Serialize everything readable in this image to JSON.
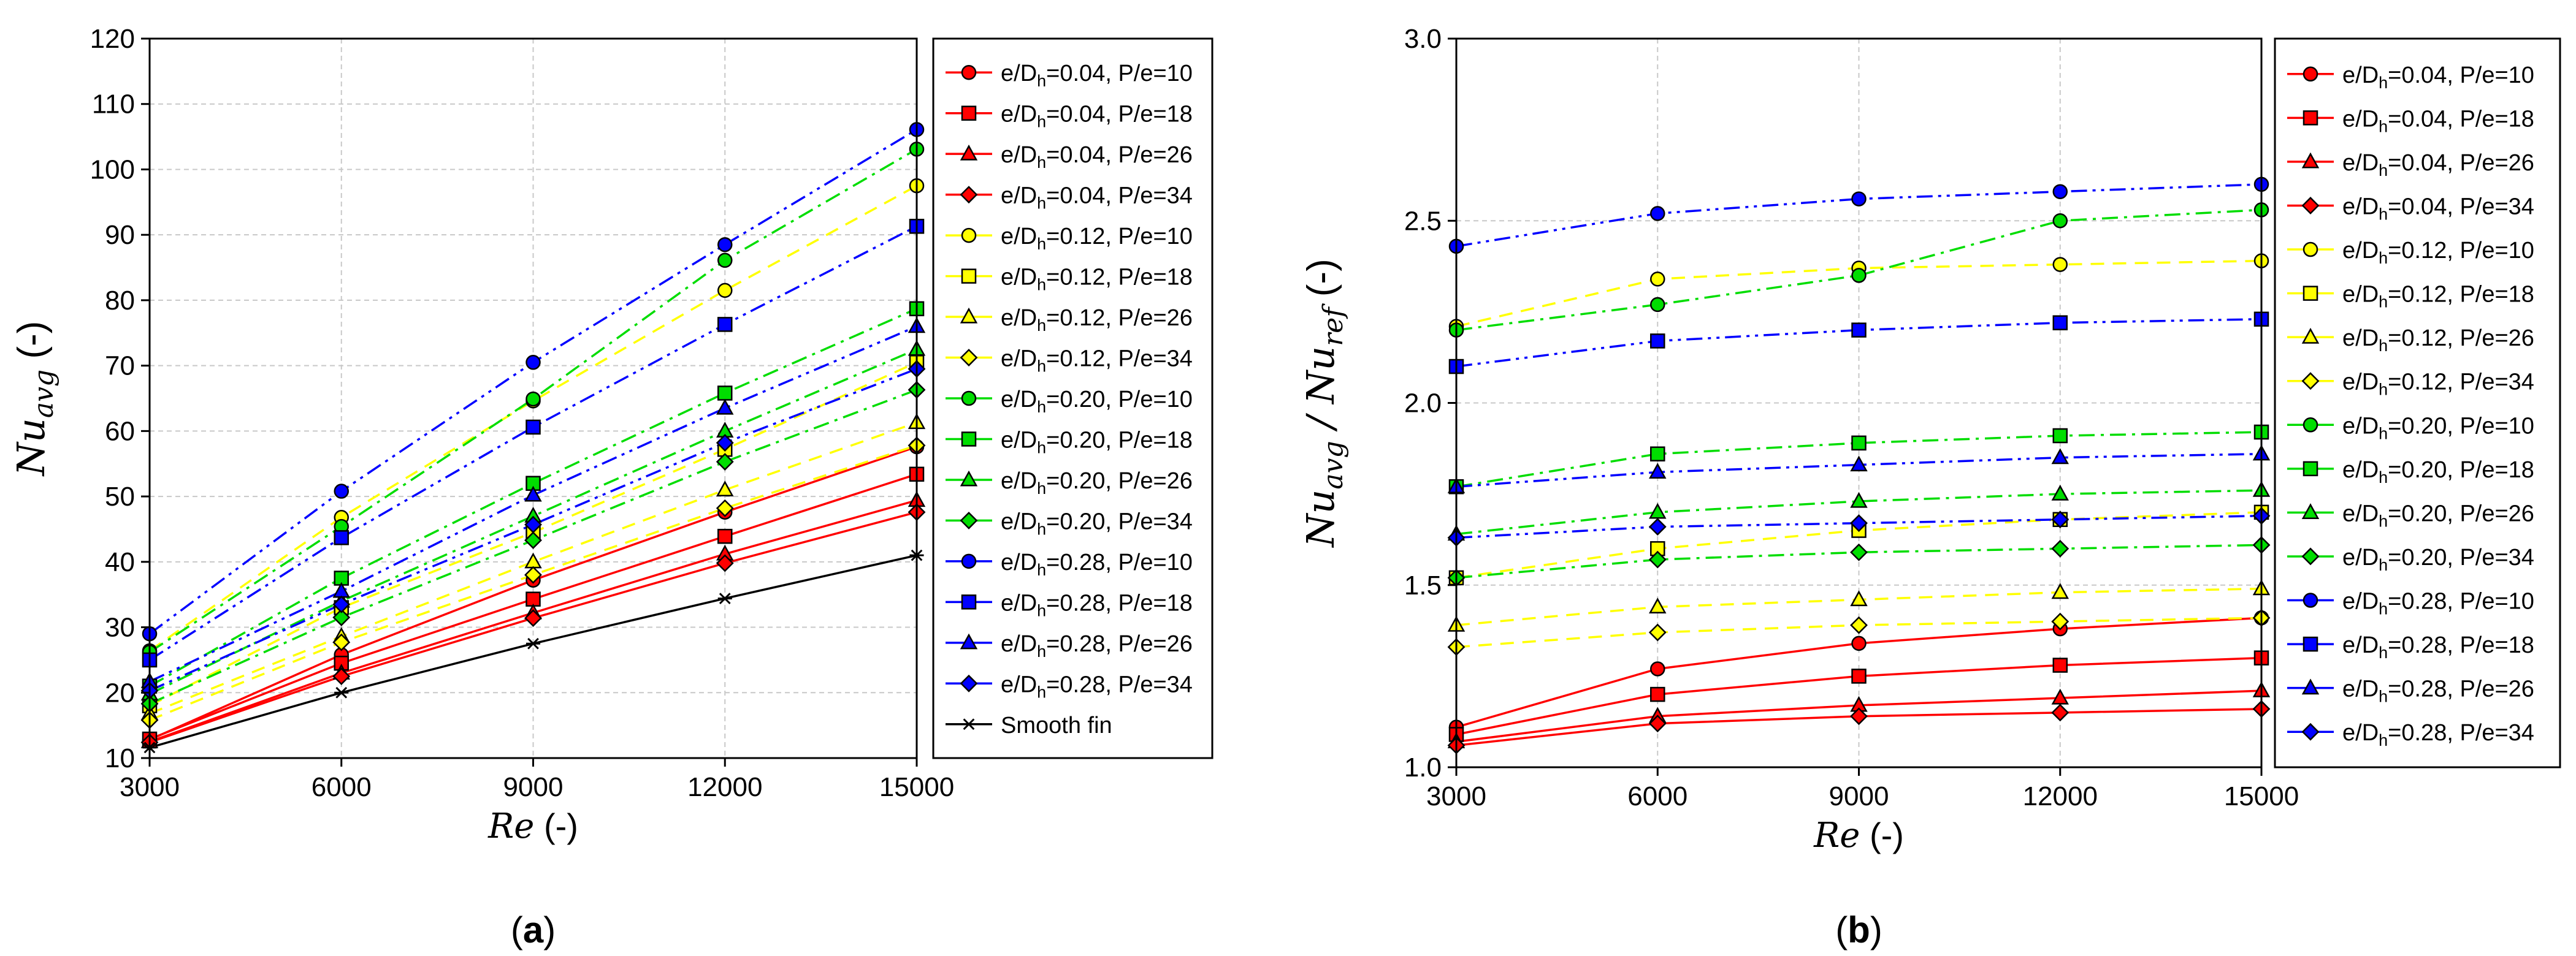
{
  "colors": {
    "red": "#ff0000",
    "yellow": "#ffff00",
    "green": "#00dd00",
    "blue": "#0000ff",
    "black": "#000000",
    "grid": "#c8c8c8"
  },
  "chart_data": [
    {
      "type": "line",
      "panel_label": "(a)",
      "ylabel_main": "Nu",
      "ylabel_sub": "avg",
      "ylabel_unit": "(-)",
      "xlabel_main": "Re",
      "xlabel_unit": "(-)",
      "x": [
        3000,
        6000,
        9000,
        12000,
        15000
      ],
      "x_tick_labels": [
        "3000",
        "6000",
        "9000",
        "12000",
        "15000"
      ],
      "xlim": [
        3000,
        15000
      ],
      "ylim": [
        10,
        120
      ],
      "y_ticks": [
        10,
        20,
        30,
        40,
        50,
        60,
        70,
        80,
        90,
        100,
        110,
        120
      ],
      "grid": true,
      "legend_position": "right-outside",
      "series": [
        {
          "name": "e/Dh=0.04, P/e=10",
          "label_pre": "e/D",
          "label_sub": "h",
          "label_post": "=0.04, P/e=10",
          "color": "red",
          "marker": "circle",
          "dash": "solid",
          "values": [
            12.8,
            25.8,
            37.2,
            47.6,
            57.6
          ]
        },
        {
          "name": "e/Dh=0.04, P/e=18",
          "label_pre": "e/D",
          "label_sub": "h",
          "label_post": "=0.04, P/e=18",
          "color": "red",
          "marker": "square",
          "dash": "solid",
          "values": [
            12.9,
            24.5,
            34.3,
            43.9,
            53.4
          ]
        },
        {
          "name": "e/Dh=0.04, P/e=26",
          "label_pre": "e/D",
          "label_sub": "h",
          "label_post": "=0.04, P/e=26",
          "color": "red",
          "marker": "triangle",
          "dash": "solid",
          "values": [
            12.5,
            23.0,
            32.2,
            41.2,
            49.4
          ]
        },
        {
          "name": "e/Dh=0.04, P/e=34",
          "label_pre": "e/D",
          "label_sub": "h",
          "label_post": "=0.04, P/e=34",
          "color": "red",
          "marker": "diamond",
          "dash": "solid",
          "values": [
            12.4,
            22.5,
            31.4,
            39.8,
            47.6
          ]
        },
        {
          "name": "e/Dh=0.12, P/e=10",
          "label_pre": "e/D",
          "label_sub": "h",
          "label_post": "=0.12, P/e=10",
          "color": "yellow",
          "marker": "circle",
          "dash": "dash",
          "values": [
            26.4,
            46.8,
            64.6,
            81.5,
            97.5
          ]
        },
        {
          "name": "e/Dh=0.12, P/e=18",
          "label_pre": "e/D",
          "label_sub": "h",
          "label_post": "=0.12, P/e=18",
          "color": "yellow",
          "marker": "square",
          "dash": "dash",
          "values": [
            18.0,
            33.0,
            44.5,
            57.2,
            70.5
          ]
        },
        {
          "name": "e/Dh=0.12, P/e=26",
          "label_pre": "e/D",
          "label_sub": "h",
          "label_post": "=0.12, P/e=26",
          "color": "yellow",
          "marker": "triangle",
          "dash": "dash",
          "values": [
            16.8,
            28.6,
            40.0,
            51.0,
            61.3
          ]
        },
        {
          "name": "e/Dh=0.12, P/e=34",
          "label_pre": "e/D",
          "label_sub": "h",
          "label_post": "=0.12, P/e=34",
          "color": "yellow",
          "marker": "diamond",
          "dash": "dash",
          "values": [
            15.8,
            27.7,
            38.0,
            48.2,
            57.8
          ]
        },
        {
          "name": "e/Dh=0.20, P/e=10",
          "label_pre": "e/D",
          "label_sub": "h",
          "label_post": "=0.20, P/e=10",
          "color": "green",
          "marker": "circle",
          "dash": "dashdot",
          "values": [
            26.2,
            45.4,
            64.9,
            86.1,
            103.1
          ]
        },
        {
          "name": "e/Dh=0.20, P/e=18",
          "label_pre": "e/D",
          "label_sub": "h",
          "label_post": "=0.20, P/e=18",
          "color": "green",
          "marker": "square",
          "dash": "dashdot",
          "values": [
            21.0,
            37.5,
            52.0,
            65.8,
            78.7
          ]
        },
        {
          "name": "e/Dh=0.20, P/e=26",
          "label_pre": "e/D",
          "label_sub": "h",
          "label_post": "=0.20, P/e=26",
          "color": "green",
          "marker": "triangle",
          "dash": "dashdot",
          "values": [
            19.8,
            34.0,
            47.0,
            60.0,
            72.5
          ]
        },
        {
          "name": "e/Dh=0.20, P/e=34",
          "label_pre": "e/D",
          "label_sub": "h",
          "label_post": "=0.20, P/e=34",
          "color": "green",
          "marker": "diamond",
          "dash": "dashdot",
          "values": [
            18.3,
            31.5,
            43.3,
            55.3,
            66.3
          ]
        },
        {
          "name": "e/Dh=0.28, P/e=10",
          "label_pre": "e/D",
          "label_sub": "h",
          "label_post": "=0.28, P/e=10",
          "color": "blue",
          "marker": "circle",
          "dash": "dashdotdot",
          "values": [
            29.0,
            50.8,
            70.5,
            88.5,
            106.1
          ]
        },
        {
          "name": "e/Dh=0.28, P/e=18",
          "label_pre": "e/D",
          "label_sub": "h",
          "label_post": "=0.28, P/e=18",
          "color": "blue",
          "marker": "square",
          "dash": "dashdotdot",
          "values": [
            25.0,
            43.7,
            60.6,
            76.3,
            91.3
          ]
        },
        {
          "name": "e/Dh=0.28, P/e=26",
          "label_pre": "e/D",
          "label_sub": "h",
          "label_post": "=0.28, P/e=26",
          "color": "blue",
          "marker": "triangle",
          "dash": "dashdotdot",
          "values": [
            21.7,
            35.5,
            50.2,
            63.5,
            76.0
          ]
        },
        {
          "name": "e/Dh=0.28, P/e=34",
          "label_pre": "e/D",
          "label_sub": "h",
          "label_post": "=0.28, P/e=34",
          "color": "blue",
          "marker": "diamond",
          "dash": "dashdotdot",
          "values": [
            20.3,
            33.5,
            45.7,
            58.2,
            69.5
          ]
        },
        {
          "name": "Smooth fin",
          "label_pre": "Smooth fin",
          "label_sub": "",
          "label_post": "",
          "color": "black",
          "marker": "star",
          "dash": "solid",
          "values": [
            11.6,
            20.0,
            27.5,
            34.4,
            41.0
          ]
        }
      ]
    },
    {
      "type": "line",
      "panel_label": "(b)",
      "ylabel_main": "Nu",
      "ylabel_sub": "avg",
      "ylabel_mid": " / Nu",
      "ylabel_sub2": "ref",
      "ylabel_unit": "(-)",
      "xlabel_main": "Re",
      "xlabel_unit": "(-)",
      "x": [
        3000,
        6000,
        9000,
        12000,
        15000
      ],
      "x_tick_labels": [
        "3000",
        "6000",
        "9000",
        "12000",
        "15000"
      ],
      "xlim": [
        3000,
        15000
      ],
      "ylim": [
        1.0,
        3.0
      ],
      "y_ticks": [
        1.0,
        1.5,
        2.0,
        2.5,
        3.0
      ],
      "y_tick_labels": [
        "1.0",
        "1.5",
        "2.0",
        "2.5",
        "3.0"
      ],
      "grid": true,
      "legend_position": "right-outside",
      "series": [
        {
          "name": "e/Dh=0.04, P/e=10",
          "label_pre": "e/D",
          "label_sub": "h",
          "label_post": "=0.04, P/e=10",
          "color": "red",
          "marker": "circle",
          "dash": "solid",
          "values": [
            1.11,
            1.27,
            1.34,
            1.38,
            1.41
          ]
        },
        {
          "name": "e/Dh=0.04, P/e=18",
          "label_pre": "e/D",
          "label_sub": "h",
          "label_post": "=0.04, P/e=18",
          "color": "red",
          "marker": "square",
          "dash": "solid",
          "values": [
            1.09,
            1.2,
            1.25,
            1.28,
            1.3
          ]
        },
        {
          "name": "e/Dh=0.04, P/e=26",
          "label_pre": "e/D",
          "label_sub": "h",
          "label_post": "=0.04, P/e=26",
          "color": "red",
          "marker": "triangle",
          "dash": "solid",
          "values": [
            1.07,
            1.14,
            1.17,
            1.19,
            1.21
          ]
        },
        {
          "name": "e/Dh=0.04, P/e=34",
          "label_pre": "e/D",
          "label_sub": "h",
          "label_post": "=0.04, P/e=34",
          "color": "red",
          "marker": "diamond",
          "dash": "solid",
          "values": [
            1.06,
            1.12,
            1.14,
            1.15,
            1.16
          ]
        },
        {
          "name": "e/Dh=0.12, P/e=10",
          "label_pre": "e/D",
          "label_sub": "h",
          "label_post": "=0.12, P/e=10",
          "color": "yellow",
          "marker": "circle",
          "dash": "dash",
          "values": [
            2.21,
            2.34,
            2.37,
            2.38,
            2.39
          ]
        },
        {
          "name": "e/Dh=0.12, P/e=18",
          "label_pre": "e/D",
          "label_sub": "h",
          "label_post": "=0.12, P/e=18",
          "color": "yellow",
          "marker": "square",
          "dash": "dash",
          "values": [
            1.52,
            1.6,
            1.65,
            1.68,
            1.7
          ]
        },
        {
          "name": "e/Dh=0.12, P/e=26",
          "label_pre": "e/D",
          "label_sub": "h",
          "label_post": "=0.12, P/e=26",
          "color": "yellow",
          "marker": "triangle",
          "dash": "dash",
          "values": [
            1.39,
            1.44,
            1.46,
            1.48,
            1.49
          ]
        },
        {
          "name": "e/Dh=0.12, P/e=34",
          "label_pre": "e/D",
          "label_sub": "h",
          "label_post": "=0.12, P/e=34",
          "color": "yellow",
          "marker": "diamond",
          "dash": "dash",
          "values": [
            1.33,
            1.37,
            1.39,
            1.4,
            1.41
          ]
        },
        {
          "name": "e/Dh=0.20, P/e=10",
          "label_pre": "e/D",
          "label_sub": "h",
          "label_post": "=0.20, P/e=10",
          "color": "green",
          "marker": "circle",
          "dash": "dashdot",
          "values": [
            2.2,
            2.27,
            2.35,
            2.5,
            2.53
          ]
        },
        {
          "name": "e/Dh=0.20, P/e=18",
          "label_pre": "e/D",
          "label_sub": "h",
          "label_post": "=0.20, P/e=18",
          "color": "green",
          "marker": "square",
          "dash": "dashdot",
          "values": [
            1.77,
            1.86,
            1.89,
            1.91,
            1.92
          ]
        },
        {
          "name": "e/Dh=0.20, P/e=26",
          "label_pre": "e/D",
          "label_sub": "h",
          "label_post": "=0.20, P/e=26",
          "color": "green",
          "marker": "triangle",
          "dash": "dashdot",
          "values": [
            1.64,
            1.7,
            1.73,
            1.75,
            1.76
          ]
        },
        {
          "name": "e/Dh=0.20, P/e=34",
          "label_pre": "e/D",
          "label_sub": "h",
          "label_post": "=0.20, P/e=34",
          "color": "green",
          "marker": "diamond",
          "dash": "dashdot",
          "values": [
            1.52,
            1.57,
            1.59,
            1.6,
            1.61
          ]
        },
        {
          "name": "e/Dh=0.28, P/e=10",
          "label_pre": "e/D",
          "label_sub": "h",
          "label_post": "=0.28, P/e=10",
          "color": "blue",
          "marker": "circle",
          "dash": "dashdotdot",
          "values": [
            2.43,
            2.52,
            2.56,
            2.58,
            2.6
          ]
        },
        {
          "name": "e/Dh=0.28, P/e=18",
          "label_pre": "e/D",
          "label_sub": "h",
          "label_post": "=0.28, P/e=18",
          "color": "blue",
          "marker": "square",
          "dash": "dashdotdot",
          "values": [
            2.1,
            2.17,
            2.2,
            2.22,
            2.23
          ]
        },
        {
          "name": "e/Dh=0.28, P/e=26",
          "label_pre": "e/D",
          "label_sub": "h",
          "label_post": "=0.28, P/e=26",
          "color": "blue",
          "marker": "triangle",
          "dash": "dashdotdot",
          "values": [
            1.77,
            1.81,
            1.83,
            1.85,
            1.86
          ]
        },
        {
          "name": "e/Dh=0.28, P/e=34",
          "label_pre": "e/D",
          "label_sub": "h",
          "label_post": "=0.28, P/e=34",
          "color": "blue",
          "marker": "diamond",
          "dash": "dashdotdot",
          "values": [
            1.63,
            1.66,
            1.67,
            1.68,
            1.69
          ]
        }
      ]
    }
  ]
}
